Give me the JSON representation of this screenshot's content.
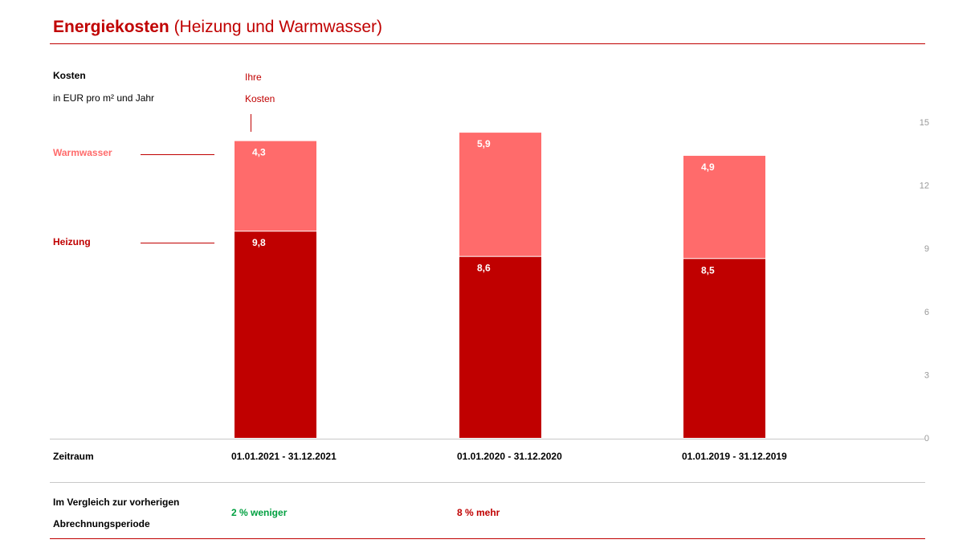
{
  "header": {
    "title_bold": "Energiekosten",
    "title_rest": "(Heizung und Warmwasser)"
  },
  "unit": {
    "label": "Kosten",
    "sublabel": "in EUR pro m² und Jahr"
  },
  "marker": {
    "line1": "Ihre",
    "line2": "Kosten"
  },
  "legend": {
    "warmwasser": "Warmwasser",
    "heizung": "Heizung"
  },
  "rows": {
    "zeitraum_label": "Zeitraum",
    "vergleich_label_1": "Im Vergleich zur vorherigen",
    "vergleich_label_2": "Abrechnungsperiode",
    "vergleich_values": [
      "2 % weniger",
      "8 % mehr",
      ""
    ]
  },
  "colors": {
    "heizung": "#c00000",
    "warmwasser": "#ff6b6b",
    "accent": "#c00000",
    "positive": "#00a040"
  },
  "chart_data": {
    "type": "bar",
    "stacked": true,
    "categories": [
      "01.01.2021 - 31.12.2021",
      "01.01.2020 - 31.12.2020",
      "01.01.2019 - 31.12.2019"
    ],
    "series": [
      {
        "name": "Heizung",
        "values": [
          9.8,
          8.6,
          8.5
        ],
        "labels": [
          "9,8",
          "8,6",
          "8,5"
        ]
      },
      {
        "name": "Warmwasser",
        "values": [
          4.3,
          5.9,
          4.9
        ],
        "labels": [
          "4,3",
          "5,9",
          "4,9"
        ]
      }
    ],
    "ylim": [
      0,
      15
    ],
    "yticks": [
      0,
      3,
      6,
      9,
      12,
      15
    ],
    "ytick_labels": [
      "0",
      "3",
      "6",
      "9",
      "12",
      "15"
    ],
    "axis_position": "right",
    "title": "Energiekosten (Heizung und Warmwasser)",
    "ylabel": "in EUR pro m² und Jahr"
  }
}
